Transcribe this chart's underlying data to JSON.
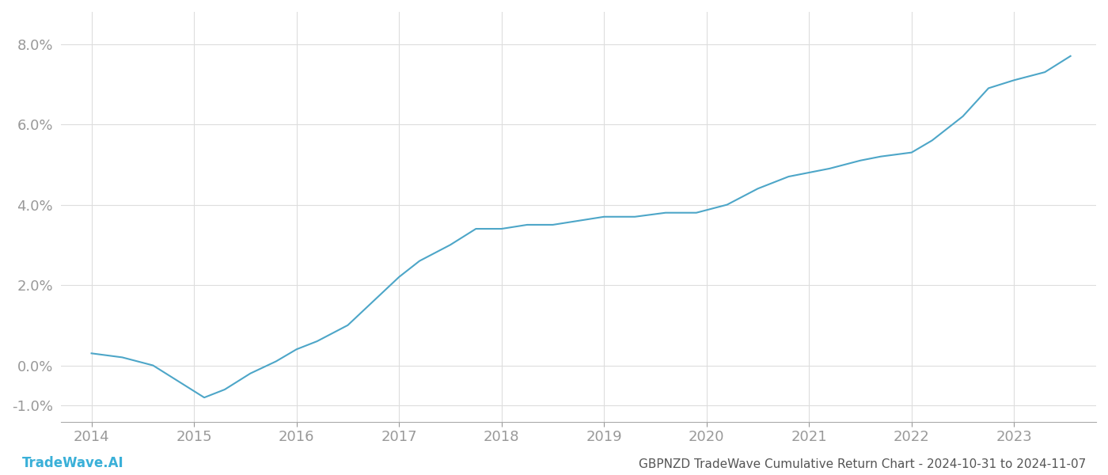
{
  "title": "GBPNZD TradeWave Cumulative Return Chart - 2024-10-31 to 2024-11-07",
  "watermark": "TradeWave.AI",
  "line_color": "#4da6c8",
  "background_color": "#ffffff",
  "x_values": [
    2014.0,
    2014.3,
    2014.6,
    2014.85,
    2015.1,
    2015.3,
    2015.55,
    2015.8,
    2016.0,
    2016.2,
    2016.5,
    2016.75,
    2017.0,
    2017.2,
    2017.5,
    2017.75,
    2018.0,
    2018.25,
    2018.5,
    2018.75,
    2019.0,
    2019.3,
    2019.6,
    2019.9,
    2020.2,
    2020.5,
    2020.8,
    2021.0,
    2021.2,
    2021.5,
    2021.7,
    2022.0,
    2022.2,
    2022.5,
    2022.75,
    2023.0,
    2023.3,
    2023.55
  ],
  "y_values": [
    0.003,
    0.002,
    0.0,
    -0.004,
    -0.008,
    -0.006,
    -0.002,
    0.001,
    0.004,
    0.006,
    0.01,
    0.016,
    0.022,
    0.026,
    0.03,
    0.034,
    0.034,
    0.035,
    0.035,
    0.036,
    0.037,
    0.037,
    0.038,
    0.038,
    0.04,
    0.044,
    0.047,
    0.048,
    0.049,
    0.051,
    0.052,
    0.053,
    0.056,
    0.062,
    0.069,
    0.071,
    0.073,
    0.077
  ],
  "yticks": [
    -0.01,
    0.0,
    0.02,
    0.04,
    0.06,
    0.08
  ],
  "ytick_labels": [
    "-1.0%",
    "0.0%",
    "2.0%",
    "4.0%",
    "6.0%",
    "8.0%"
  ],
  "xlim": [
    2013.7,
    2023.8
  ],
  "ylim": [
    -0.014,
    0.088
  ],
  "xticks": [
    2014,
    2015,
    2016,
    2017,
    2018,
    2019,
    2020,
    2021,
    2022,
    2023
  ],
  "grid_color": "#dddddd",
  "tick_color": "#999999",
  "title_color": "#555555",
  "watermark_color": "#3ab0d8",
  "line_width": 1.5
}
